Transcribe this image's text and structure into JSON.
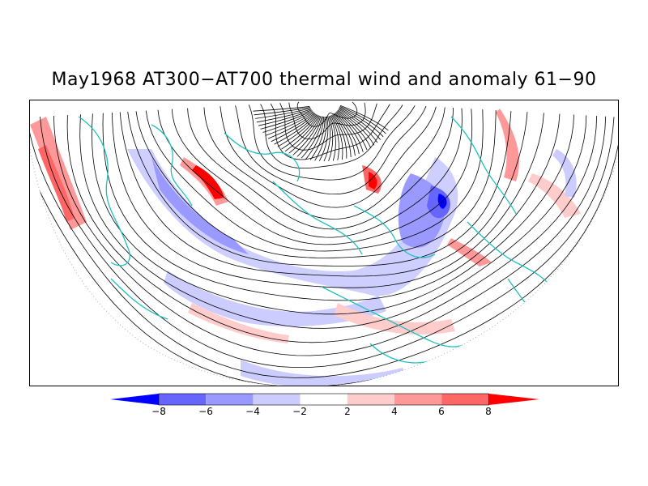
{
  "title": "May1968 AT300−AT700 thermal wind and anomaly 61−90",
  "colorbar": {
    "labels": [
      "−8",
      "−6",
      "−4",
      "−2",
      "2",
      "4",
      "6",
      "8"
    ],
    "colors": [
      "#0000ff",
      "#6666ff",
      "#9999ff",
      "#ccccff",
      "#ffffff",
      "#ffcccc",
      "#ff9999",
      "#ff6666",
      "#ff0000"
    ]
  },
  "map": {
    "coastline_color": "#20c0c0",
    "streamline_color": "#000000"
  }
}
